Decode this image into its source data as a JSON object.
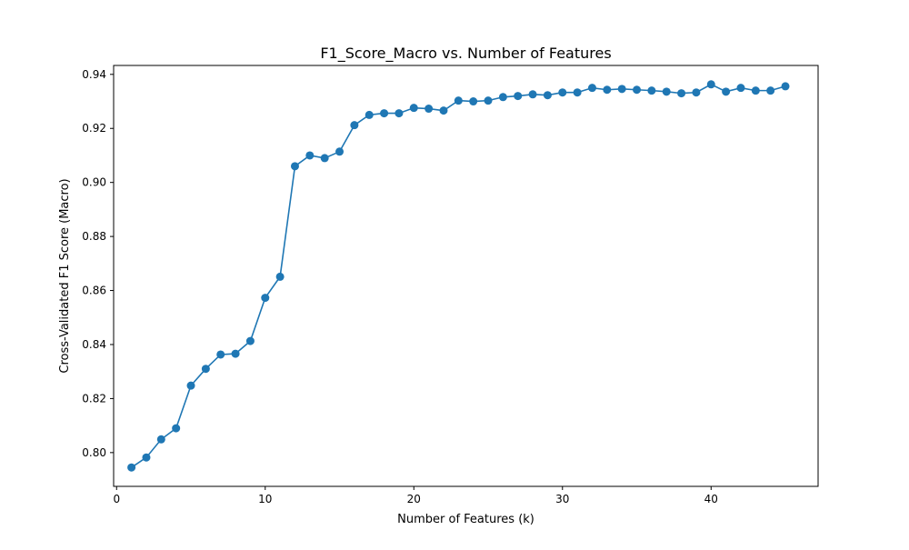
{
  "chart_data": {
    "type": "line",
    "title": "F1_Score_Macro vs. Number of Features",
    "xlabel": "Number of Features (k)",
    "ylabel": "Cross-Validated F1 Score (Macro)",
    "xlim": [
      -0.2,
      47.2
    ],
    "ylim": [
      0.7875,
      0.9433
    ],
    "xticks": [
      0,
      10,
      20,
      30,
      40
    ],
    "xtick_labels": [
      "0",
      "10",
      "20",
      "30",
      "40"
    ],
    "yticks": [
      0.8,
      0.82,
      0.84,
      0.86,
      0.88,
      0.9,
      0.92,
      0.94
    ],
    "ytick_labels": [
      "0.80",
      "0.82",
      "0.84",
      "0.86",
      "0.88",
      "0.90",
      "0.92",
      "0.94"
    ],
    "grid": false,
    "legend": false,
    "series": [
      {
        "color": "#1f77b4",
        "marker": "circle",
        "x": [
          1,
          2,
          3,
          4,
          5,
          6,
          7,
          8,
          9,
          10,
          11,
          12,
          13,
          14,
          15,
          16,
          17,
          18,
          19,
          20,
          21,
          22,
          23,
          24,
          25,
          26,
          27,
          28,
          29,
          30,
          31,
          32,
          33,
          34,
          35,
          36,
          37,
          38,
          39,
          40,
          41,
          42,
          43,
          44,
          45
        ],
        "values": [
          0.7945,
          0.7982,
          0.8049,
          0.809,
          0.8248,
          0.831,
          0.8363,
          0.8366,
          0.8413,
          0.8573,
          0.8651,
          0.906,
          0.91,
          0.909,
          0.9114,
          0.9212,
          0.925,
          0.9256,
          0.9256,
          0.9276,
          0.9273,
          0.9266,
          0.9303,
          0.93,
          0.9303,
          0.9316,
          0.932,
          0.9326,
          0.9323,
          0.9333,
          0.9333,
          0.935,
          0.9343,
          0.9346,
          0.9343,
          0.934,
          0.9336,
          0.933,
          0.9333,
          0.9363,
          0.9336,
          0.935,
          0.934,
          0.934,
          0.9356
        ]
      }
    ]
  }
}
